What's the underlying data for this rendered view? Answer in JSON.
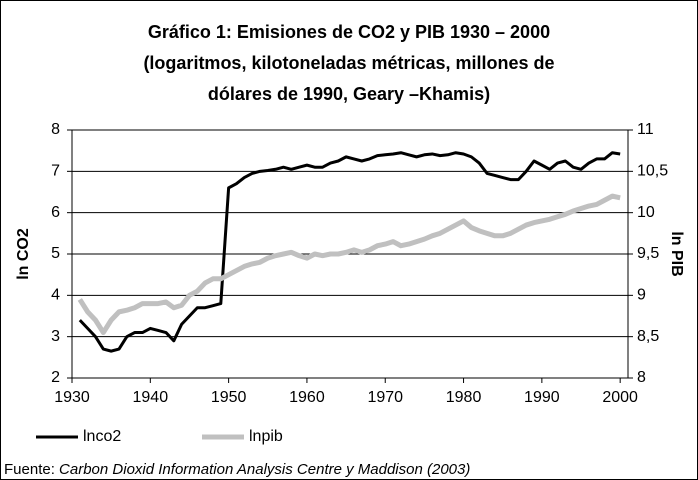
{
  "chart_data": {
    "type": "line",
    "title": [
      "Gráfico 1: Emisiones de CO2 y PIB 1930 – 2000",
      "(logaritmos, kilotoneladas métricas, millones de",
      "dólares de 1990, Geary –Khamis)"
    ],
    "y_label": "ln CO2",
    "y2_label": "ln PIB",
    "source_prefix": "Fuente: ",
    "source": "Carbon Dioxid Information Analysis Centre y Maddison (2003)",
    "xlim": [
      1930,
      2001
    ],
    "xticks": [
      1930,
      1940,
      1950,
      1960,
      1970,
      1980,
      1990,
      2000
    ],
    "ylim": [
      2,
      8
    ],
    "yticks": [
      2,
      3,
      4,
      5,
      6,
      7,
      8
    ],
    "y2lim": [
      8,
      11
    ],
    "y2ticks": [
      8,
      {
        "value": 8.5,
        "label": "8,5"
      },
      9,
      {
        "value": 9.5,
        "label": "9,5"
      },
      10,
      {
        "value": 10.5,
        "label": "10,5"
      },
      11
    ],
    "grid": true,
    "x": [
      1931,
      1932,
      1933,
      1934,
      1935,
      1936,
      1937,
      1938,
      1939,
      1940,
      1941,
      1942,
      1943,
      1944,
      1945,
      1946,
      1947,
      1948,
      1949,
      1950,
      1951,
      1952,
      1953,
      1954,
      1955,
      1956,
      1957,
      1958,
      1959,
      1960,
      1961,
      1962,
      1963,
      1964,
      1965,
      1966,
      1967,
      1968,
      1969,
      1970,
      1971,
      1972,
      1973,
      1974,
      1975,
      1976,
      1977,
      1978,
      1979,
      1980,
      1981,
      1982,
      1983,
      1984,
      1985,
      1986,
      1987,
      1988,
      1989,
      1990,
      1991,
      1992,
      1993,
      1994,
      1995,
      1996,
      1997,
      1998,
      1999,
      2000
    ],
    "series": [
      {
        "name": "lnco2",
        "color": "#000000",
        "values": [
          3.4,
          3.2,
          3.0,
          2.7,
          2.65,
          2.7,
          3.0,
          3.1,
          3.1,
          3.2,
          3.15,
          3.1,
          2.9,
          3.3,
          3.5,
          3.7,
          3.7,
          3.75,
          3.8,
          6.6,
          6.7,
          6.85,
          6.95,
          7.0,
          7.02,
          7.05,
          7.1,
          7.05,
          7.1,
          7.15,
          7.1,
          7.1,
          7.2,
          7.25,
          7.35,
          7.3,
          7.25,
          7.3,
          7.38,
          7.4,
          7.42,
          7.45,
          7.4,
          7.35,
          7.4,
          7.42,
          7.38,
          7.4,
          7.45,
          7.42,
          7.35,
          7.2,
          6.95,
          6.9,
          6.85,
          6.8,
          6.8,
          7.0,
          7.25,
          7.15,
          7.05,
          7.2,
          7.25,
          7.1,
          7.05,
          7.2,
          7.3,
          7.3,
          7.45,
          7.42
        ]
      },
      {
        "name": "lnpib",
        "color": "#c0c0c0",
        "axis": "y2",
        "values": [
          8.95,
          8.8,
          8.7,
          8.55,
          8.7,
          8.8,
          8.82,
          8.85,
          8.9,
          8.9,
          8.9,
          8.92,
          8.85,
          8.88,
          9.0,
          9.05,
          9.15,
          9.2,
          9.2,
          9.25,
          9.3,
          9.35,
          9.38,
          9.4,
          9.45,
          9.48,
          9.5,
          9.52,
          9.48,
          9.45,
          9.5,
          9.48,
          9.5,
          9.5,
          9.52,
          9.55,
          9.52,
          9.55,
          9.6,
          9.62,
          9.65,
          9.6,
          9.62,
          9.65,
          9.68,
          9.72,
          9.75,
          9.8,
          9.85,
          9.9,
          9.82,
          9.78,
          9.75,
          9.72,
          9.72,
          9.75,
          9.8,
          9.85,
          9.88,
          9.9,
          9.92,
          9.95,
          9.98,
          10.02,
          10.05,
          10.08,
          10.1,
          10.15,
          10.2,
          10.18
        ]
      }
    ]
  }
}
